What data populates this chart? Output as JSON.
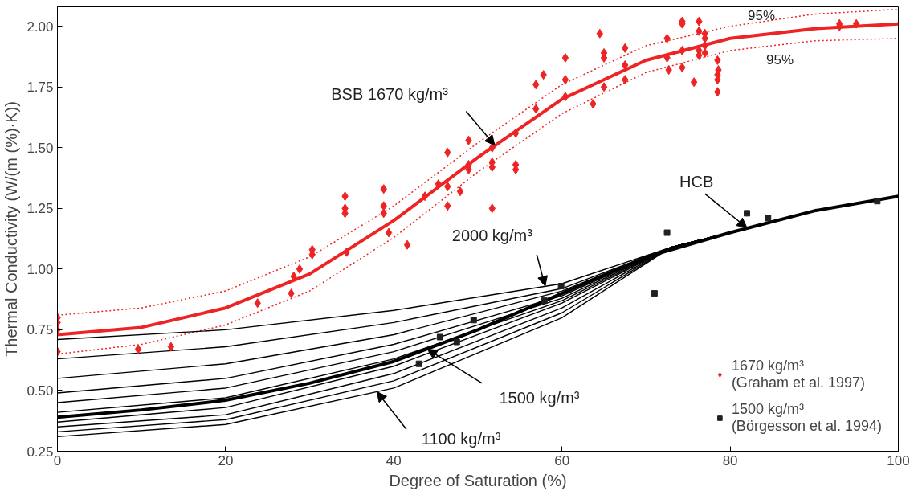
{
  "chart_data": {
    "type": "line",
    "xlabel": "Degree of Saturation (%)",
    "ylabel": "Thermal Conductivity (W/(m (%)·K))",
    "xlim": [
      0,
      100
    ],
    "ylim": [
      0.25,
      2.08
    ],
    "xticks": [
      0,
      20,
      40,
      60,
      80,
      100
    ],
    "yticks": [
      {
        "value": 0.25,
        "label": "0.25"
      },
      {
        "value": 0.5,
        "label": "0.50"
      },
      {
        "value": 0.75,
        "label": "0.75"
      },
      {
        "value": 1.0,
        "label": "1.00"
      },
      {
        "value": 1.25,
        "label": "1.25"
      },
      {
        "value": 1.5,
        "label": "1.50"
      },
      {
        "value": 1.75,
        "label": "1.75"
      },
      {
        "value": 2.0,
        "label": "2.00"
      }
    ],
    "grid": false,
    "legend": "bottom right",
    "marker": "none",
    "series": [
      {
        "color": "#ee2424",
        "line_style": "solid",
        "x": [
          0,
          10,
          20,
          30,
          40,
          50,
          60,
          70,
          80,
          90,
          100
        ],
        "values": [
          0.73,
          0.76,
          0.84,
          0.98,
          1.2,
          1.46,
          1.7,
          1.86,
          1.95,
          1.99,
          2.01
        ]
      },
      {
        "color": "#ee2424",
        "line_style": "dotted",
        "x": [
          0,
          10,
          20,
          30,
          40,
          50,
          60,
          70,
          80,
          90,
          100
        ],
        "values": [
          0.81,
          0.84,
          0.91,
          1.05,
          1.26,
          1.52,
          1.76,
          1.92,
          2.0,
          2.05,
          2.07
        ]
      },
      {
        "color": "#ee2424",
        "line_style": "dotted",
        "x": [
          0,
          10,
          20,
          30,
          40,
          50,
          60,
          70,
          80,
          90,
          100
        ],
        "values": [
          0.65,
          0.69,
          0.77,
          0.91,
          1.13,
          1.4,
          1.64,
          1.81,
          1.9,
          1.94,
          1.95
        ]
      },
      {
        "color": "#000000",
        "line_style": "solid",
        "x": [
          0,
          20,
          40,
          60,
          73,
          80,
          90,
          100
        ],
        "values": [
          0.71,
          0.75,
          0.83,
          0.94,
          1.09,
          1.15,
          1.24,
          1.3
        ]
      },
      {
        "color": "#000000",
        "line_style": "solid",
        "x": [
          0,
          20,
          40,
          60,
          73,
          80,
          90,
          100
        ],
        "values": [
          0.63,
          0.68,
          0.78,
          0.92,
          1.09,
          1.15,
          1.24,
          1.3
        ]
      },
      {
        "color": "#000000",
        "line_style": "solid",
        "x": [
          0,
          20,
          40,
          60,
          73,
          80,
          90,
          100
        ],
        "values": [
          0.55,
          0.61,
          0.73,
          0.91,
          1.09,
          1.15,
          1.24,
          1.3
        ]
      },
      {
        "color": "#000000",
        "line_style": "solid",
        "x": [
          0,
          20,
          40,
          60,
          73,
          80,
          90,
          100
        ],
        "values": [
          0.49,
          0.55,
          0.69,
          0.89,
          1.09,
          1.15,
          1.24,
          1.3
        ]
      },
      {
        "color": "#000000",
        "line_style": "solid",
        "x": [
          0,
          20,
          40,
          60,
          73,
          80,
          90,
          100
        ],
        "values": [
          0.45,
          0.51,
          0.66,
          0.88,
          1.09,
          1.15,
          1.24,
          1.3
        ]
      },
      {
        "color": "#000000",
        "line_style": "solid",
        "x": [
          0,
          20,
          40,
          60,
          73,
          80,
          90,
          100
        ],
        "values": [
          0.41,
          0.47,
          0.63,
          0.87,
          1.09,
          1.15,
          1.24,
          1.3
        ]
      },
      {
        "color": "#000000",
        "line_style": "solid",
        "x": [
          0,
          20,
          40,
          60,
          73,
          80,
          90,
          100
        ],
        "values": [
          0.37,
          0.43,
          0.6,
          0.86,
          1.09,
          1.15,
          1.24,
          1.3
        ]
      },
      {
        "color": "#000000",
        "line_style": "solid",
        "x": [
          0,
          20,
          40,
          60,
          73,
          80,
          90,
          100
        ],
        "values": [
          0.35,
          0.4,
          0.57,
          0.84,
          1.09,
          1.15,
          1.24,
          1.3
        ]
      },
      {
        "color": "#000000",
        "line_style": "solid",
        "x": [
          0,
          20,
          40,
          60,
          73,
          80,
          90,
          100
        ],
        "values": [
          0.33,
          0.38,
          0.54,
          0.82,
          1.09,
          1.15,
          1.24,
          1.3
        ]
      },
      {
        "color": "#000000",
        "line_style": "solid",
        "x": [
          0,
          20,
          40,
          60,
          73,
          80,
          90,
          100
        ],
        "values": [
          0.31,
          0.36,
          0.51,
          0.8,
          1.09,
          1.15,
          1.24,
          1.3
        ]
      },
      {
        "color": "#000000",
        "line_style": "solid",
        "x": [
          0,
          10,
          20,
          30,
          40,
          50,
          60,
          70,
          80,
          90,
          100
        ],
        "values": [
          0.39,
          0.42,
          0.46,
          0.53,
          0.62,
          0.75,
          0.9,
          1.05,
          1.15,
          1.24,
          1.3
        ]
      },
      {
        "type": "scatter",
        "name": "1670 kg/m³\n(Graham et al. 1997)",
        "color": "#ee2424",
        "marker": "diamond",
        "x": [
          0,
          0,
          0,
          0,
          9.6,
          13.5,
          23.8,
          27.8,
          28.1,
          28.8,
          30.3,
          30.3,
          34.2,
          34.2,
          34.2,
          34.4,
          38.8,
          38.8,
          38.8,
          39.4,
          41.6,
          43.7,
          45.3,
          46.4,
          46.4,
          46.4,
          47.9,
          48.9,
          48.9,
          48.9,
          51.7,
          51.7,
          51.7,
          51.7,
          54.5,
          54.5,
          54.5,
          56.9,
          56.9,
          57.8,
          60.4,
          60.4,
          60.4,
          63.7,
          64.5,
          65,
          65,
          65,
          67.5,
          67.5,
          67.5,
          72.5,
          72.5,
          72.7,
          74.3,
          74.3,
          74.3,
          74.3,
          75.7,
          76.3,
          76.3,
          76.3,
          76.3,
          77,
          77,
          77,
          77,
          78.5,
          78.5,
          78.5,
          78.5,
          78.6,
          93,
          93,
          95
        ],
        "values": [
          0.8,
          0.78,
          0.75,
          0.66,
          0.67,
          0.68,
          0.86,
          0.9,
          0.97,
          1.0,
          1.06,
          1.08,
          1.3,
          1.25,
          1.23,
          1.07,
          1.33,
          1.26,
          1.23,
          1.15,
          1.1,
          1.3,
          1.35,
          1.48,
          1.34,
          1.26,
          1.32,
          1.53,
          1.43,
          1.41,
          1.44,
          1.42,
          1.25,
          1.5,
          1.56,
          1.43,
          1.41,
          1.76,
          1.66,
          1.8,
          1.87,
          1.78,
          1.71,
          1.68,
          1.97,
          1.89,
          1.87,
          1.75,
          1.91,
          1.84,
          1.78,
          1.95,
          1.87,
          1.82,
          2.02,
          2.01,
          1.9,
          1.83,
          1.77,
          2.02,
          1.98,
          1.9,
          1.88,
          1.97,
          1.95,
          1.92,
          1.89,
          1.86,
          1.8,
          1.78,
          1.73,
          1.82,
          2.01,
          2.0,
          2.01
        ]
      },
      {
        "type": "scatter",
        "name": "1500 kg/m³\n(Börgesson et al. 1994)",
        "color": "#231f20",
        "marker": "square",
        "x": [
          43,
          45.5,
          47.5,
          49.5,
          57.9,
          59.9,
          71,
          72.5,
          82,
          84.5,
          97.5
        ],
        "values": [
          0.61,
          0.72,
          0.7,
          0.79,
          0.87,
          0.93,
          0.9,
          1.15,
          1.23,
          1.21,
          1.28
        ]
      }
    ],
    "annotations": [
      {
        "text": "BSB 1670 kg/m³",
        "x": 52,
        "y": 1.51
      },
      {
        "text": "HCB",
        "x": 82,
        "y": 1.17
      },
      {
        "text": "2000 kg/m³",
        "x": 58,
        "y": 0.93
      },
      {
        "text": "1500 kg/m³",
        "x": 44,
        "y": 0.67
      },
      {
        "text": "1100 kg/m³",
        "x": 38,
        "y": 0.495
      },
      {
        "text": "95%",
        "x": 82,
        "y": 2.01
      },
      {
        "text": "95%",
        "x": 84,
        "y": 1.916
      }
    ]
  }
}
